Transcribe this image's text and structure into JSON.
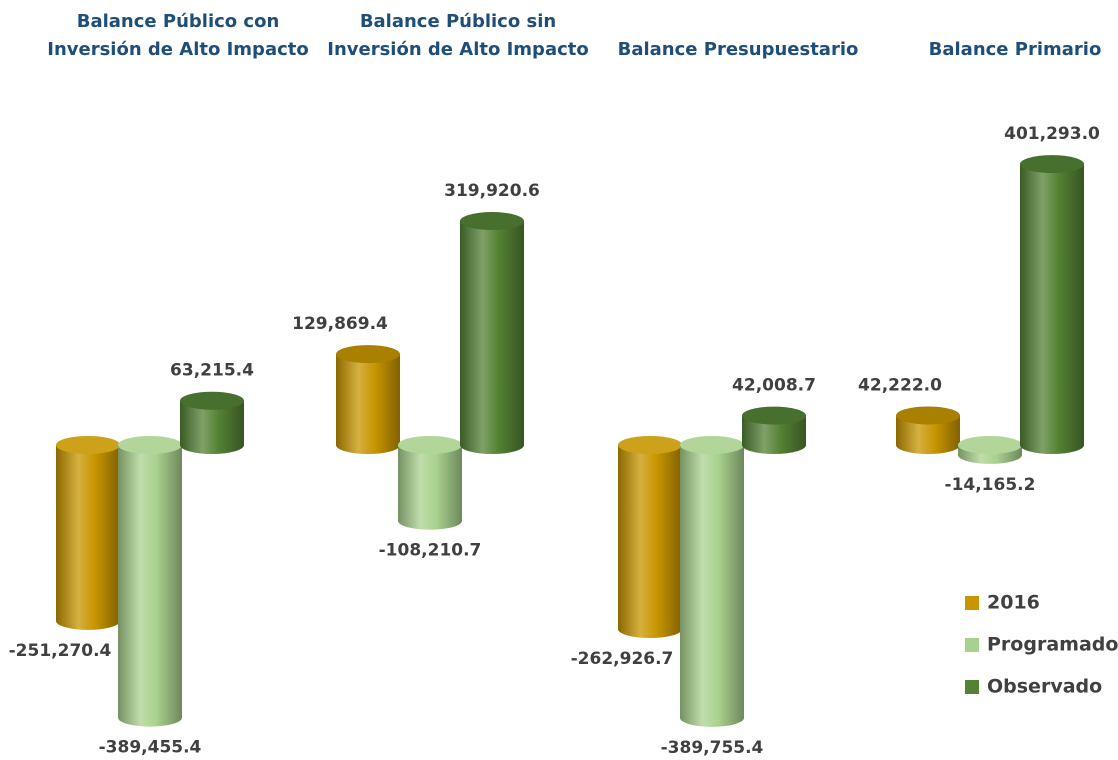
{
  "chart_data": {
    "type": "bar",
    "categories": [
      [
        "Balance Público con",
        "Inversión de Alto Impacto"
      ],
      [
        "Balance Público sin",
        "Inversión de Alto Impacto"
      ],
      [
        "Balance Presupuestario"
      ],
      [
        "Balance Primario"
      ]
    ],
    "series": [
      {
        "name": "2016",
        "color": "#c89600",
        "values": [
          -251270.4,
          129869.4,
          -262926.7,
          42222.0
        ],
        "value_labels": [
          "-251,270.4",
          "129,869.4",
          "-262,926.7",
          "42,222.0"
        ]
      },
      {
        "name": "Programado",
        "color": "#a9d18e",
        "values": [
          -389455.4,
          -108210.7,
          -389755.4,
          -14165.2
        ],
        "value_labels": [
          "-389,455.4",
          "-108,210.7",
          "-389,755.4",
          "-14,165.2"
        ]
      },
      {
        "name": "Observado",
        "color": "#548235",
        "values": [
          63215.4,
          319920.6,
          42008.7,
          401293.0
        ],
        "value_labels": [
          "63,215.4",
          "319,920.6",
          "42,008.7",
          "401,293.0"
        ]
      }
    ],
    "legend": "lower right"
  }
}
